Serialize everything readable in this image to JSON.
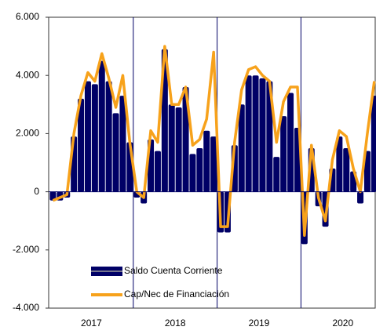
{
  "chart_data": {
    "type": "bar_line",
    "categories": [
      null,
      null,
      null,
      null,
      null,
      "2017",
      null,
      null,
      null,
      null,
      null,
      null,
      null,
      null,
      null,
      null,
      null,
      "2018",
      null,
      null,
      null,
      null,
      null,
      null,
      null,
      null,
      null,
      null,
      null,
      "2019",
      null,
      null,
      null,
      null,
      null,
      null,
      null,
      null,
      null,
      null,
      null,
      "2020",
      null,
      null,
      null,
      null,
      null
    ],
    "series": [
      {
        "name": "Saldo Cuenta Corriente",
        "color": "#000066",
        "kind": "bar",
        "values": [
          -300,
          -300,
          -200,
          1900,
          3200,
          3800,
          3700,
          4500,
          3800,
          2700,
          3300,
          1700,
          -200,
          -400,
          1800,
          1400,
          4900,
          3000,
          2900,
          3600,
          1300,
          1500,
          2100,
          1900,
          -1400,
          -1400,
          1600,
          3000,
          4000,
          4000,
          3900,
          3800,
          1200,
          2600,
          3400,
          2200,
          -1800,
          1500,
          -500,
          -1200,
          800,
          1900,
          1500,
          700,
          -400,
          1400,
          3300
        ]
      },
      {
        "name": "Cap/Nec de Financiación",
        "color": "#f7a21b",
        "kind": "line",
        "values": [
          -300,
          -200,
          -100,
          2000,
          3300,
          4100,
          3800,
          4750,
          3900,
          2900,
          4000,
          1700,
          0,
          -200,
          2100,
          1700,
          5000,
          3000,
          3000,
          3600,
          1600,
          1800,
          2500,
          4800,
          -1200,
          -1200,
          1700,
          3500,
          4200,
          4300,
          4000,
          3800,
          1700,
          3100,
          3600,
          3600,
          -1500,
          1600,
          -200,
          -1000,
          1100,
          2100,
          1900,
          800,
          0,
          2000,
          3800
        ]
      }
    ],
    "ylim": [
      -4000,
      6000
    ],
    "yticks": [
      {
        "value": -4000,
        "label": "-4.000"
      },
      {
        "value": -2000,
        "label": "-2.000"
      },
      0,
      {
        "value": 2000,
        "label": "2.000"
      },
      {
        "value": 4000,
        "label": "4.000"
      },
      {
        "value": 6000,
        "label": "6.000"
      }
    ],
    "legend": "lower left"
  }
}
